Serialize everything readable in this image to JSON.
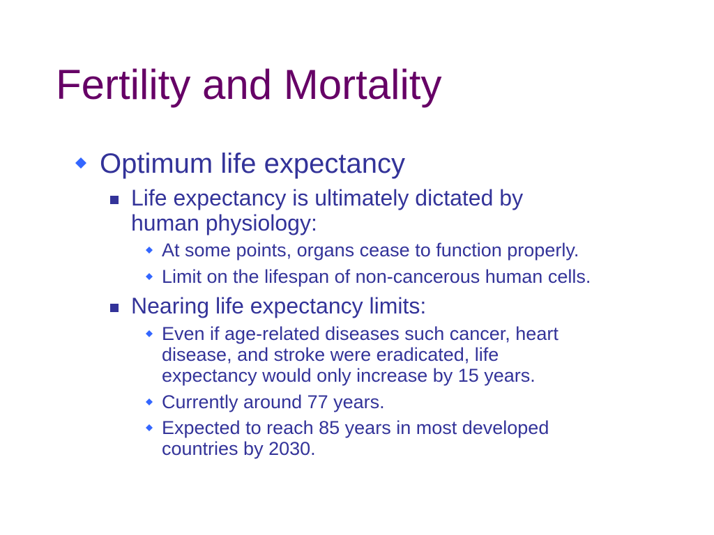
{
  "slide": {
    "title": "Fertility and Mortality",
    "colors": {
      "title": "#660066",
      "text": "#333399",
      "bullet_level1": "#3366ff",
      "bullet_level2": "#333399",
      "bullet_level3": "#3366ff"
    },
    "bullets": {
      "b1": {
        "text": "Optimum life expectancy",
        "icon": "diamond-bullet-icon",
        "b1_1": {
          "line1": "Life expectancy is ultimately dictated by",
          "line2": "human physiology:",
          "icon": "square-bullet-icon",
          "b1_1_1": {
            "text": "At some points, organs cease to function properly."
          },
          "b1_1_2": {
            "text": "Limit on the lifespan of non-cancerous human cells."
          }
        },
        "b1_2": {
          "text": "Nearing life expectancy limits:",
          "icon": "square-bullet-icon",
          "b1_2_1": {
            "line1": "Even if age-related diseases such cancer, heart",
            "line2": "disease, and stroke were eradicated, life",
            "line3": "expectancy would only increase by 15 years."
          },
          "b1_2_2": {
            "text": "Currently around 77 years."
          },
          "b1_2_3": {
            "line1": "Expected to reach 85 years in most developed",
            "line2": "countries by 2030."
          }
        }
      }
    }
  }
}
